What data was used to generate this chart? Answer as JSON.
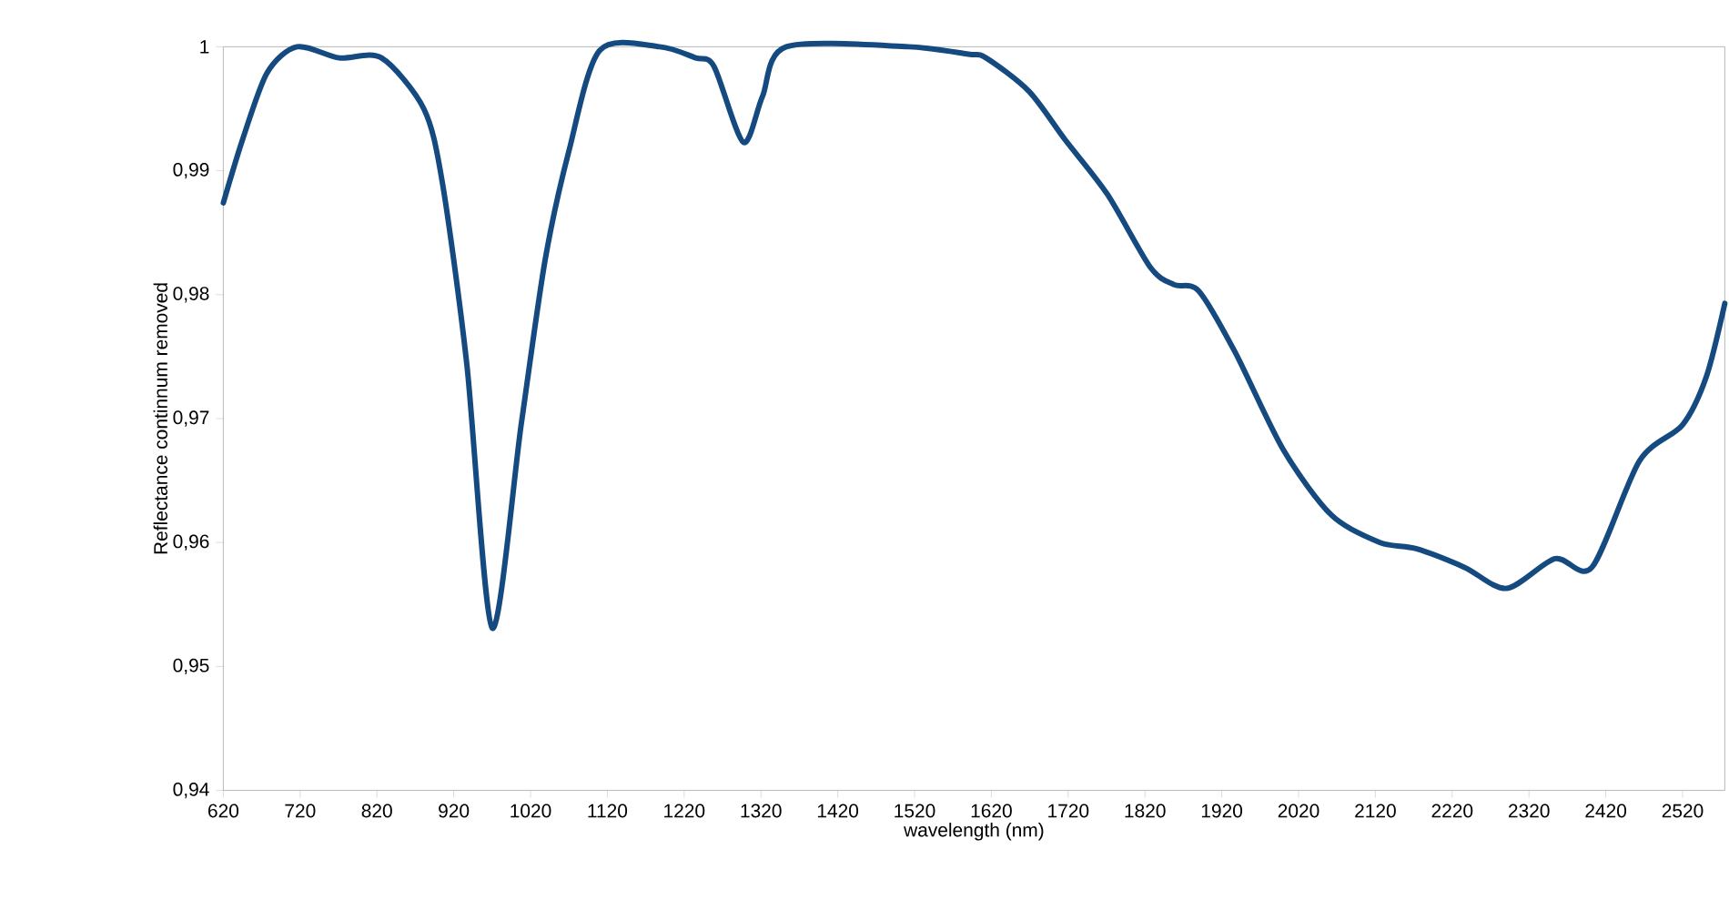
{
  "chart_data": {
    "type": "line",
    "xlabel": "wavelength (nm)",
    "ylabel": "Reflectance continnum removed",
    "xlim": [
      620,
      2575
    ],
    "ylim": [
      0.94,
      1
    ],
    "xticks": [
      620,
      720,
      820,
      920,
      1020,
      1120,
      1220,
      1320,
      1420,
      1520,
      1620,
      1720,
      1820,
      1920,
      2020,
      2120,
      2220,
      2320,
      2420,
      2520
    ],
    "yticks": [
      {
        "value": 0.94,
        "label": "0,94"
      },
      {
        "value": 0.95,
        "label": "0,95"
      },
      {
        "value": 0.96,
        "label": "0,96"
      },
      {
        "value": 0.97,
        "label": "0,97"
      },
      {
        "value": 0.98,
        "label": "0,98"
      },
      {
        "value": 0.99,
        "label": "0,99"
      },
      {
        "value": 1,
        "label": "1"
      }
    ],
    "series": [
      {
        "color": "#154a80",
        "x": [
          620,
          645,
          677,
          716,
          771,
          826,
          881,
          905,
          937,
          970,
          1008,
          1039,
          1070,
          1110,
          1188,
          1235,
          1259,
          1297,
          1322,
          1353,
          1512,
          1590,
          1613,
          1669,
          1716,
          1771,
          1827,
          1858,
          1890,
          1937,
          2000,
          2063,
          2126,
          2173,
          2236,
          2291,
          2354,
          2402,
          2464,
          2520,
          2551,
          2575
        ],
        "values": [
          0.9874,
          0.9925,
          0.9979,
          1.0,
          0.9991,
          0.9991,
          0.995,
          0.9891,
          0.9744,
          0.9531,
          0.9696,
          0.9828,
          0.9916,
          0.9997,
          1.0,
          0.9991,
          0.9984,
          0.9923,
          0.996,
          1.0,
          1.0,
          0.9994,
          0.9991,
          0.9964,
          0.9925,
          0.9881,
          0.9822,
          0.9808,
          0.9803,
          0.9754,
          0.9675,
          0.9622,
          0.96,
          0.9595,
          0.958,
          0.9563,
          0.9587,
          0.958,
          0.9666,
          0.9695,
          0.9734,
          0.9793
        ]
      }
    ]
  }
}
